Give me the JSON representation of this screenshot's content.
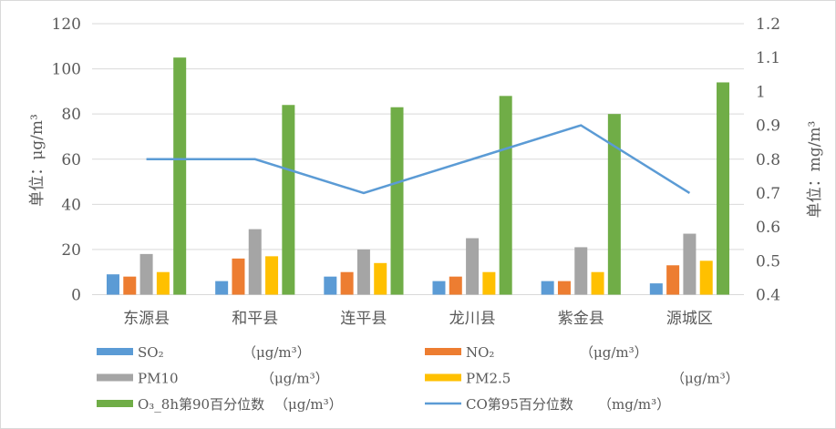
{
  "chart_data": {
    "type": "bar",
    "categories": [
      "东源县",
      "和平县",
      "连平县",
      "龙川县",
      "紫金县",
      "源城区"
    ],
    "series": [
      {
        "name": "SO₂",
        "unit": "（μg/m³）",
        "color": "#5b9bd5",
        "values": [
          9,
          6,
          8,
          6,
          6,
          5
        ]
      },
      {
        "name": "NO₂",
        "unit": "（μg/m³）",
        "color": "#ed7d31",
        "values": [
          8,
          16,
          10,
          8,
          6,
          13
        ]
      },
      {
        "name": "PM10",
        "unit": "（μg/m³）",
        "color": "#a5a5a5",
        "values": [
          18,
          29,
          20,
          25,
          21,
          27
        ]
      },
      {
        "name": "PM2.5",
        "unit": "（μg/m³）",
        "color": "#ffc000",
        "values": [
          10,
          17,
          14,
          10,
          10,
          15
        ]
      },
      {
        "name": "O₃_8h第90百分位数",
        "unit": "（μg/m³）",
        "color": "#70ad47",
        "values": [
          105,
          84,
          83,
          88,
          80,
          94
        ]
      }
    ],
    "line_series": {
      "name": "CO第95百分位数",
      "unit": "（mg/m³）",
      "color": "#5b9bd5",
      "axis": "right",
      "values": [
        0.8,
        0.8,
        0.7,
        0.8,
        0.9,
        0.7
      ]
    },
    "ylabel": "单位：μg/m³",
    "y2label": "单位：mg/m³",
    "ylim": [
      0,
      120
    ],
    "yticks": [
      0,
      20,
      40,
      60,
      80,
      100,
      120
    ],
    "y2lim": [
      0.4,
      1.2
    ],
    "y2ticks": [
      "0.4",
      "0.5",
      "0.6",
      "0.7",
      "0.8",
      "0.9",
      "1",
      "1.1",
      "1.2"
    ],
    "grid": true,
    "legend": "bottom"
  }
}
